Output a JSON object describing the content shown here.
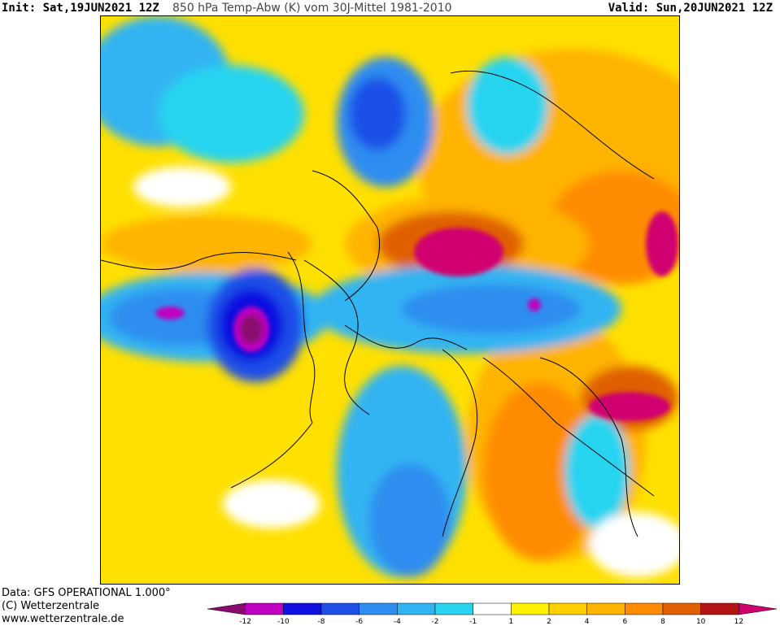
{
  "header": {
    "init": "Init: Sat,19JUN2021 12Z",
    "title": "850 hPa Temp-Abw (K) vom 30J-Mittel 1981-2010",
    "valid": "Valid: Sun,20JUN2021 12Z"
  },
  "footer": {
    "data_source": "Data: GFS OPERATIONAL 1.000°",
    "copyright": "(C) Wetterzentrale",
    "url": "www.wetterzentrale.de"
  },
  "legend": {
    "tick_labels": [
      "-12",
      "-10",
      "-8",
      "-6",
      "-4",
      "-2",
      "-1",
      "1",
      "2",
      "4",
      "6",
      "8",
      "10",
      "12"
    ],
    "colors": [
      "#8b0a6f",
      "#c000c0",
      "#1010e0",
      "#1e50e8",
      "#2f8df0",
      "#30b4f2",
      "#28d4f0",
      "#ffffff",
      "#fff200",
      "#ffd000",
      "#ffb400",
      "#ff8c00",
      "#e06000",
      "#b41414",
      "#d0006f"
    ]
  },
  "map": {
    "projection": "polar stereographic, Northern Hemisphere",
    "field": "850 hPa temperature anomaly (K)"
  }
}
